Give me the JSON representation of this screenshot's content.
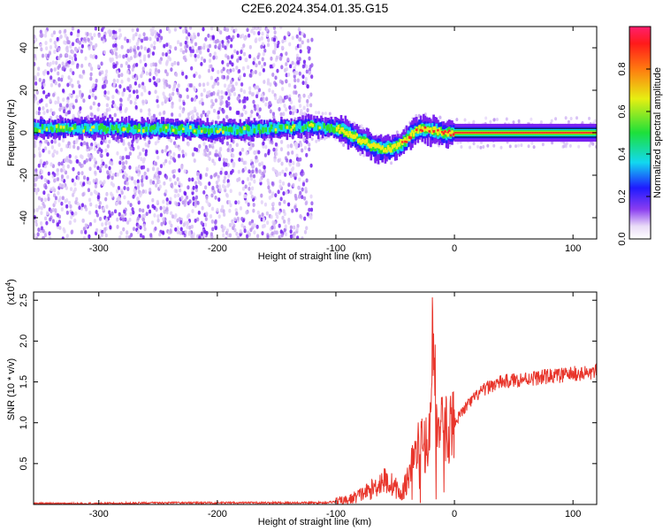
{
  "title": "C2E6.2024.354.01.35.G15",
  "chart_data": [
    {
      "type": "heatmap",
      "xlabel": "Height of straight line (km)",
      "ylabel": "Frequency (Hz)",
      "xlim": [
        -355,
        120
      ],
      "ylim": [
        -50,
        50
      ],
      "xticks": [
        -300,
        -200,
        -100,
        0,
        100
      ],
      "yticks": [
        -40,
        -20,
        0,
        20,
        40
      ],
      "grid": false,
      "description_series": [
        {
          "name": "center frequency track",
          "x": [
            -355,
            -300,
            -250,
            -200,
            -150,
            -120,
            -100,
            -90,
            -80,
            -70,
            -60,
            -50,
            -45,
            -40,
            -35,
            -30,
            -25,
            -20,
            -15,
            -10,
            -5,
            0,
            50,
            100,
            120
          ],
          "y": [
            2,
            2,
            2,
            1,
            2,
            3,
            2,
            0,
            -3,
            -6,
            -8,
            -7,
            -5,
            -3,
            0,
            2,
            2,
            1,
            1,
            0,
            0,
            0,
            0,
            0,
            0
          ]
        }
      ],
      "colorbar": {
        "label": "Normalized spectral amplitude",
        "range": [
          0,
          1
        ],
        "ticks": [
          "0.0",
          "0.2",
          "0.4",
          "0.6",
          "0.8"
        ]
      }
    },
    {
      "type": "line",
      "xlabel": "Height of straight line (km)",
      "ylabel": "SNR (10 * v/v)",
      "scale_label": "(x10",
      "scale_exp": "4",
      "scale_close": ")",
      "xlim": [
        -355,
        120
      ],
      "ylim": [
        0,
        2.6
      ],
      "xticks": [
        -300,
        -200,
        -100,
        0,
        100
      ],
      "yticks": [
        "0.5",
        "1.0",
        "1.5",
        "2.0",
        "2.5"
      ],
      "grid": false,
      "series": [
        {
          "color": "#e8352b",
          "x": [
            -355,
            -300,
            -250,
            -200,
            -150,
            -110,
            -90,
            -70,
            -60,
            -50,
            -45,
            -40,
            -35,
            -30,
            -25,
            -20,
            -18,
            -15,
            -10,
            -5,
            0,
            10,
            20,
            30,
            40,
            50,
            60,
            70,
            80,
            90,
            100,
            110,
            120
          ],
          "y": [
            0.01,
            0.01,
            0.02,
            0.02,
            0.02,
            0.02,
            0.05,
            0.18,
            0.3,
            0.22,
            0.1,
            0.3,
            0.55,
            0.7,
            0.75,
            0.85,
            2.6,
            0.9,
            0.9,
            0.95,
            1.0,
            1.2,
            1.35,
            1.45,
            1.5,
            1.52,
            1.54,
            1.55,
            1.57,
            1.58,
            1.6,
            1.6,
            1.62
          ]
        }
      ]
    }
  ],
  "colors": {
    "axis": "#000000",
    "signal": "#e8352b",
    "background": "#ffffff"
  }
}
